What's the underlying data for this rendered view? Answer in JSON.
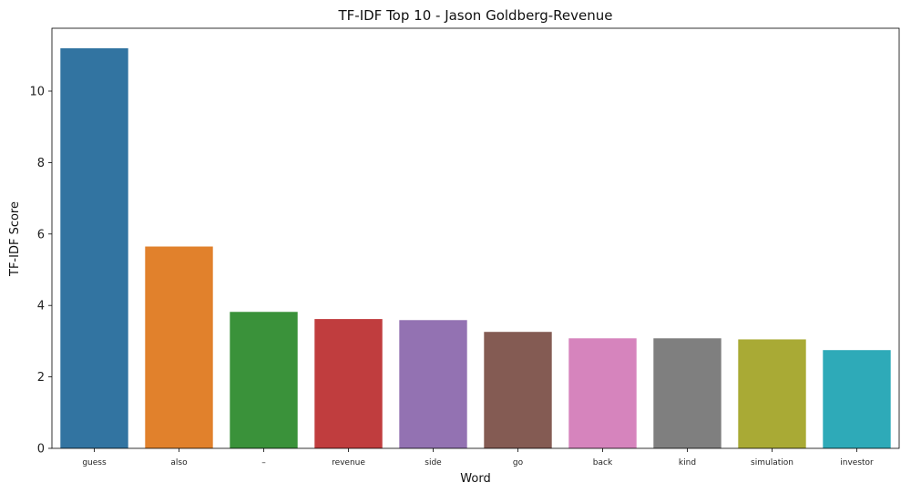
{
  "chart_data": {
    "type": "bar",
    "title": "TF-IDF Top 10 - Jason Goldberg-Revenue",
    "xlabel": "Word",
    "ylabel": "TF-IDF Score",
    "categories": [
      "guess",
      "also",
      "–",
      "revenue",
      "side",
      "go",
      "back",
      "kind",
      "simulation",
      "investor"
    ],
    "values": [
      11.2,
      5.65,
      3.82,
      3.62,
      3.59,
      3.26,
      3.08,
      3.08,
      3.05,
      2.75
    ],
    "colors": [
      "#3274a1",
      "#e1812c",
      "#3a923a",
      "#c03d3e",
      "#9372b2",
      "#845b53",
      "#d684bd",
      "#7f7f7f",
      "#a9aa35",
      "#2eaab8"
    ],
    "ylim": [
      0,
      11.76
    ],
    "yticks": [
      0,
      2,
      4,
      6,
      8,
      10
    ],
    "grid": false,
    "legend": "none"
  }
}
